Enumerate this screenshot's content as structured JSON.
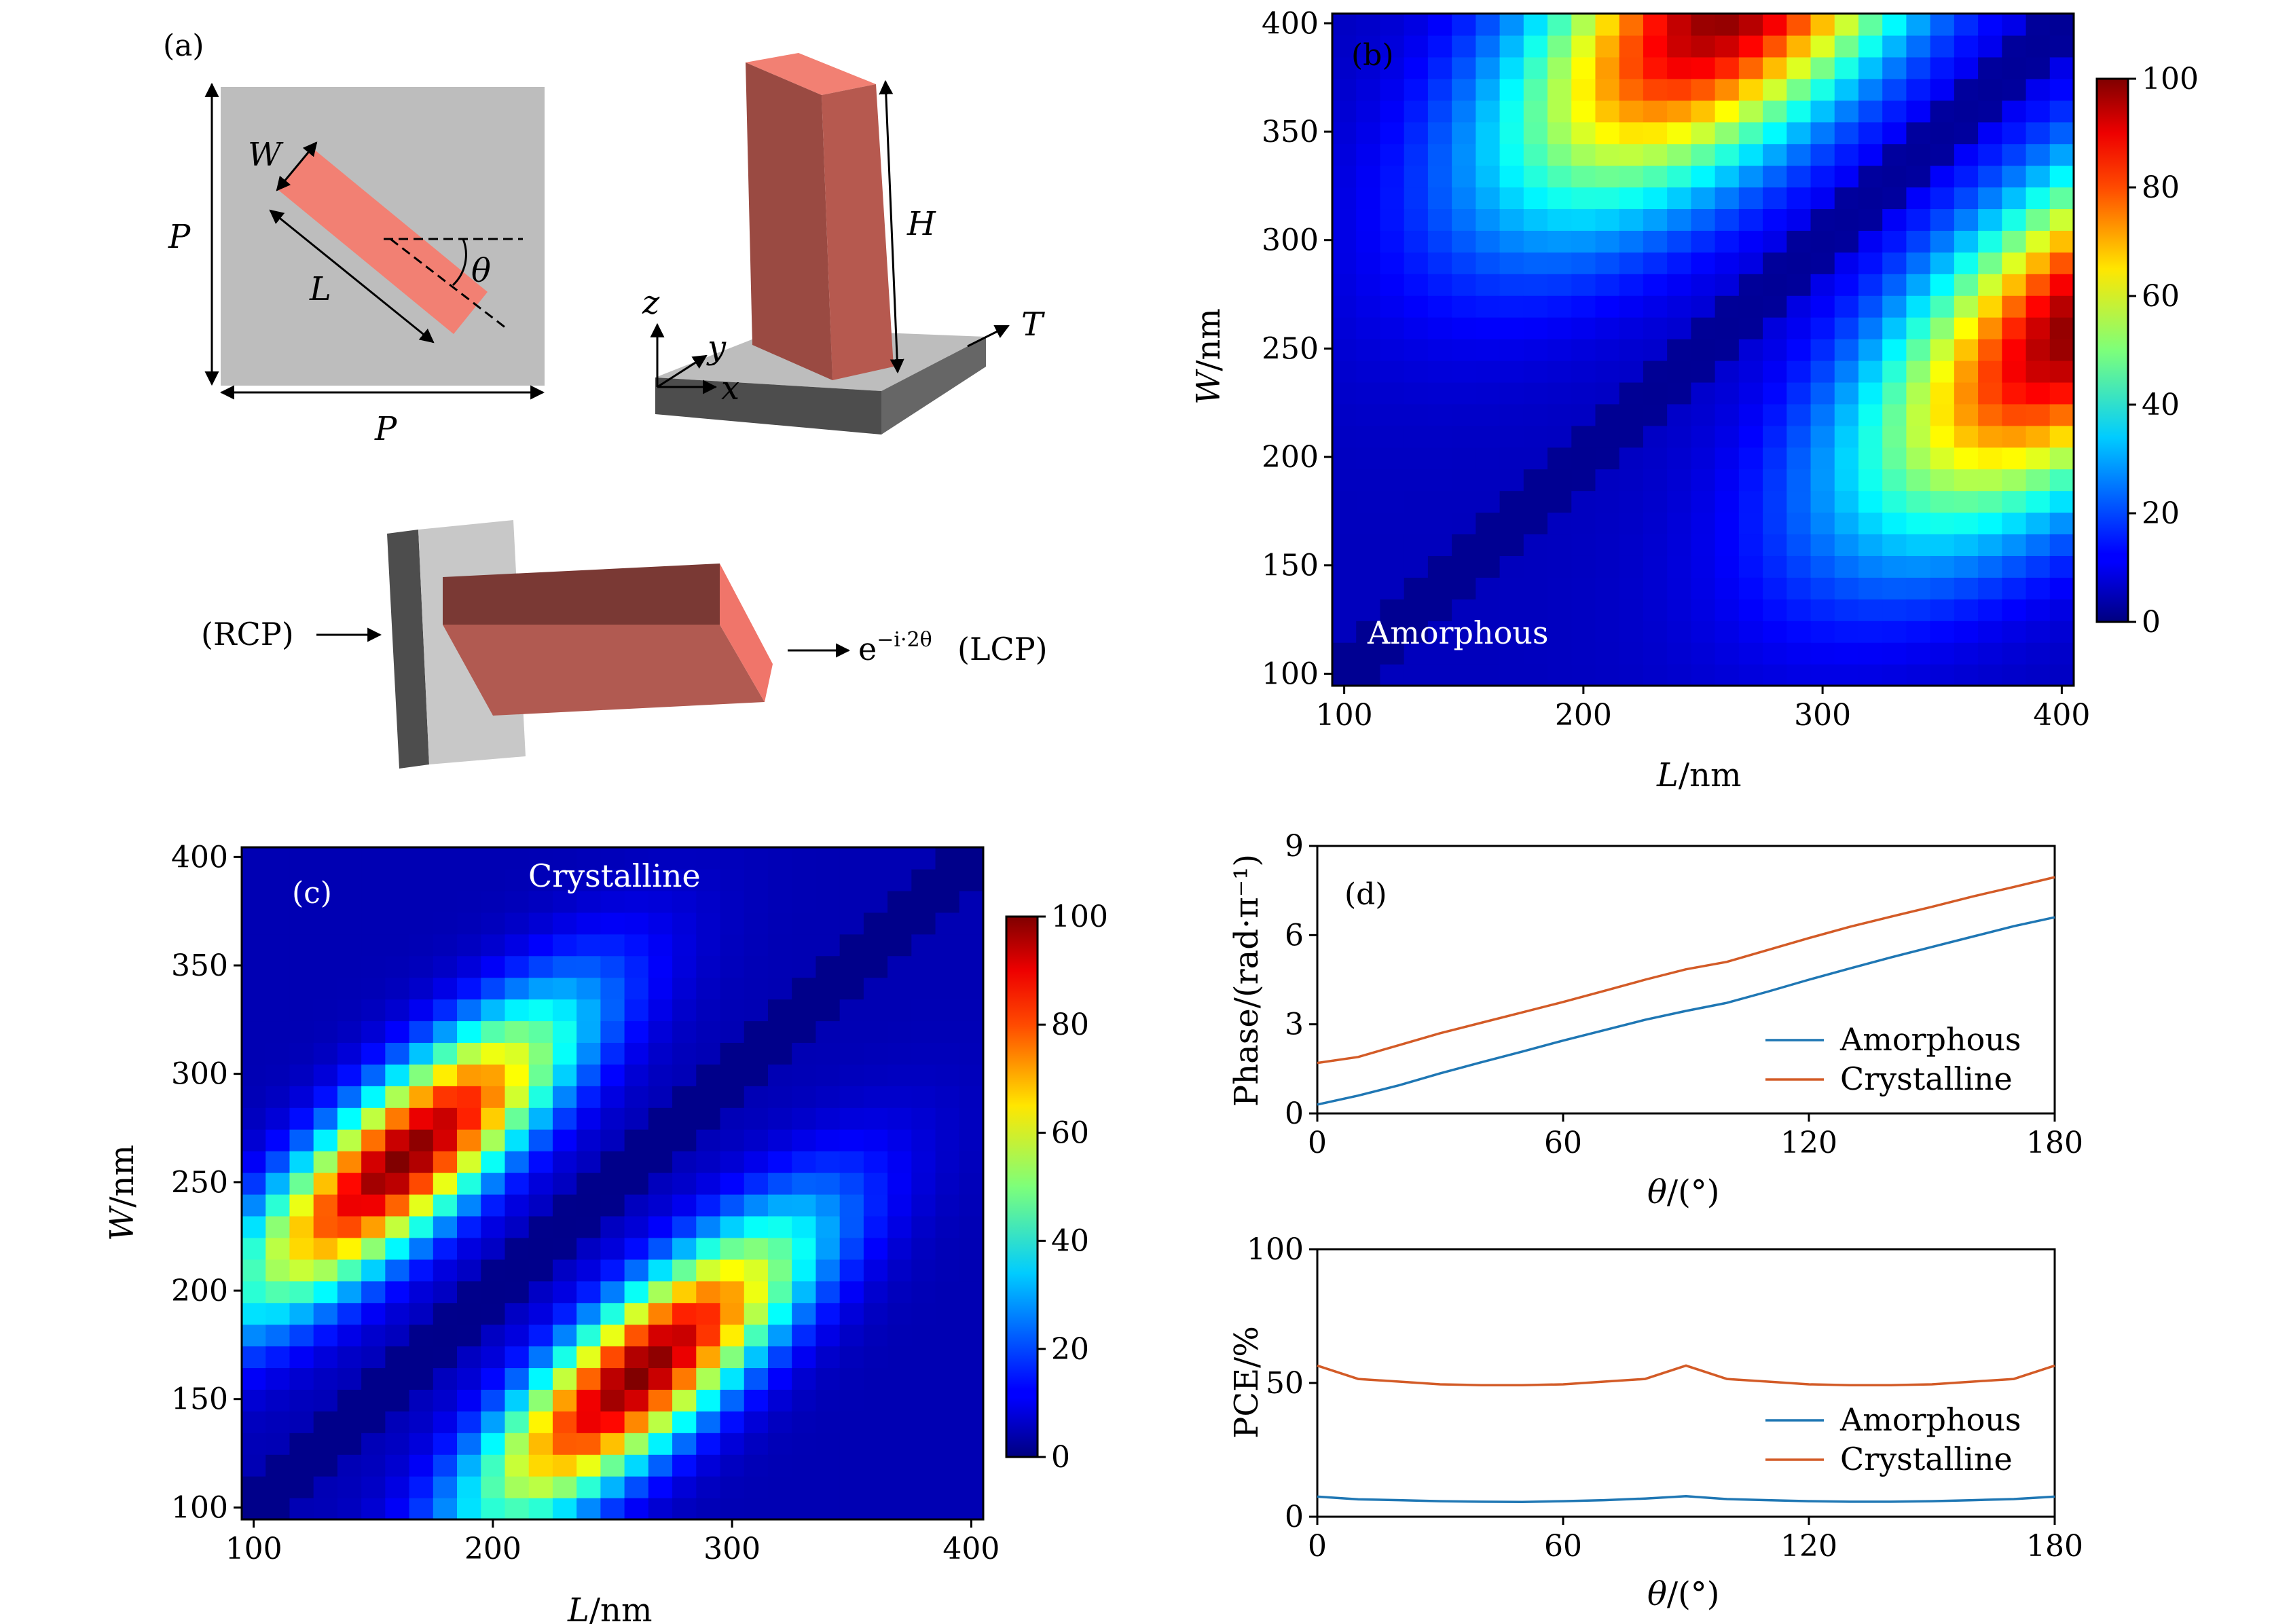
{
  "colors": {
    "amorphous": "#1f77b4",
    "crystalline": "#d35b27",
    "rod_top": "#e7776a",
    "rod_side": "#9f4e45",
    "rod_front": "#c25e55",
    "substrate_light": "#bdbdbd",
    "substrate_dark": "#555555"
  },
  "panel_a": {
    "label": "(a)",
    "sym_W": "W",
    "sym_L": "L",
    "sym_P_vertical": "P",
    "sym_P_horizontal": "P",
    "sym_theta": "θ",
    "sym_H": "H",
    "sym_T": "T",
    "axis_x": "x",
    "axis_y": "y",
    "axis_z": "z",
    "input_label": "(RCP)",
    "output_phase_base": "e",
    "output_phase_sup": "−i·2θ",
    "output_label": "(LCP)"
  },
  "chart_data": [
    {
      "id": "b",
      "type": "heatmap",
      "panel_label": "(b)",
      "annotation": "Amorphous",
      "xlabel_var": "L",
      "xlabel_unit": "/nm",
      "ylabel_var": "W",
      "ylabel_unit": "/nm",
      "xlim": [
        100,
        400
      ],
      "ylim": [
        100,
        400
      ],
      "xticks": [
        "100",
        "200",
        "300",
        "400"
      ],
      "yticks": [
        "100",
        "150",
        "200",
        "250",
        "300",
        "350",
        "400"
      ],
      "colorbar_ticks": [
        "0",
        "20",
        "40",
        "60",
        "80",
        "100"
      ],
      "colorbar_range": [
        0,
        100
      ],
      "grid_step_nm": 10,
      "pattern": "amorphous"
    },
    {
      "id": "c",
      "type": "heatmap",
      "panel_label": "(c)",
      "annotation": "Crystalline",
      "xlabel_var": "L",
      "xlabel_unit": "/nm",
      "ylabel_var": "W",
      "ylabel_unit": "/nm",
      "xlim": [
        100,
        400
      ],
      "ylim": [
        100,
        400
      ],
      "xticks": [
        "100",
        "200",
        "300",
        "400"
      ],
      "yticks": [
        "100",
        "150",
        "200",
        "250",
        "300",
        "350",
        "400"
      ],
      "colorbar_ticks": [
        "0",
        "20",
        "40",
        "60",
        "80",
        "100"
      ],
      "colorbar_range": [
        0,
        100
      ],
      "grid_step_nm": 10,
      "pattern": "crystalline"
    },
    {
      "id": "d_phase",
      "type": "line",
      "panel_label": "(d)",
      "xlabel_var": "θ",
      "xlabel_unit": "/(°)",
      "ylabel": "Phase/(rad·π⁻¹)",
      "xlim": [
        0,
        180
      ],
      "ylim": [
        0,
        9
      ],
      "xticks": [
        "0",
        "60",
        "120",
        "180"
      ],
      "yticks": [
        "0",
        "3",
        "6",
        "9"
      ],
      "x": [
        0,
        10,
        20,
        30,
        40,
        50,
        60,
        70,
        80,
        90,
        100,
        110,
        120,
        130,
        140,
        150,
        160,
        170,
        180
      ],
      "series": [
        {
          "name": "Amorphous",
          "values": [
            0.3,
            0.6,
            0.95,
            1.35,
            1.72,
            2.08,
            2.45,
            2.8,
            3.15,
            3.45,
            3.72,
            4.1,
            4.5,
            4.88,
            5.25,
            5.6,
            5.95,
            6.3,
            6.6
          ]
        },
        {
          "name": "Crystalline",
          "values": [
            1.7,
            1.9,
            2.3,
            2.7,
            3.05,
            3.4,
            3.75,
            4.12,
            4.5,
            4.85,
            5.1,
            5.5,
            5.9,
            6.28,
            6.62,
            6.95,
            7.3,
            7.62,
            7.95
          ]
        }
      ]
    },
    {
      "id": "d_pce",
      "type": "line",
      "xlabel_var": "θ",
      "xlabel_unit": "/(°)",
      "ylabel": "PCE/%",
      "xlim": [
        0,
        180
      ],
      "ylim": [
        0,
        100
      ],
      "xticks": [
        "0",
        "60",
        "120",
        "180"
      ],
      "yticks": [
        "0",
        "50",
        "100"
      ],
      "x": [
        0,
        10,
        20,
        30,
        40,
        50,
        60,
        70,
        80,
        90,
        100,
        110,
        120,
        130,
        140,
        150,
        160,
        170,
        180
      ],
      "series": [
        {
          "name": "Amorphous",
          "values": [
            7.5,
            6.5,
            6.2,
            5.8,
            5.6,
            5.5,
            5.8,
            6.2,
            6.8,
            7.7,
            6.6,
            6.2,
            5.8,
            5.6,
            5.6,
            5.8,
            6.2,
            6.6,
            7.5
          ]
        },
        {
          "name": "Crystalline",
          "values": [
            56.5,
            51.5,
            50.5,
            49.5,
            49.2,
            49.2,
            49.5,
            50.5,
            51.5,
            56.5,
            51.5,
            50.5,
            49.5,
            49.2,
            49.2,
            49.5,
            50.5,
            51.5,
            56.5
          ]
        }
      ]
    }
  ]
}
